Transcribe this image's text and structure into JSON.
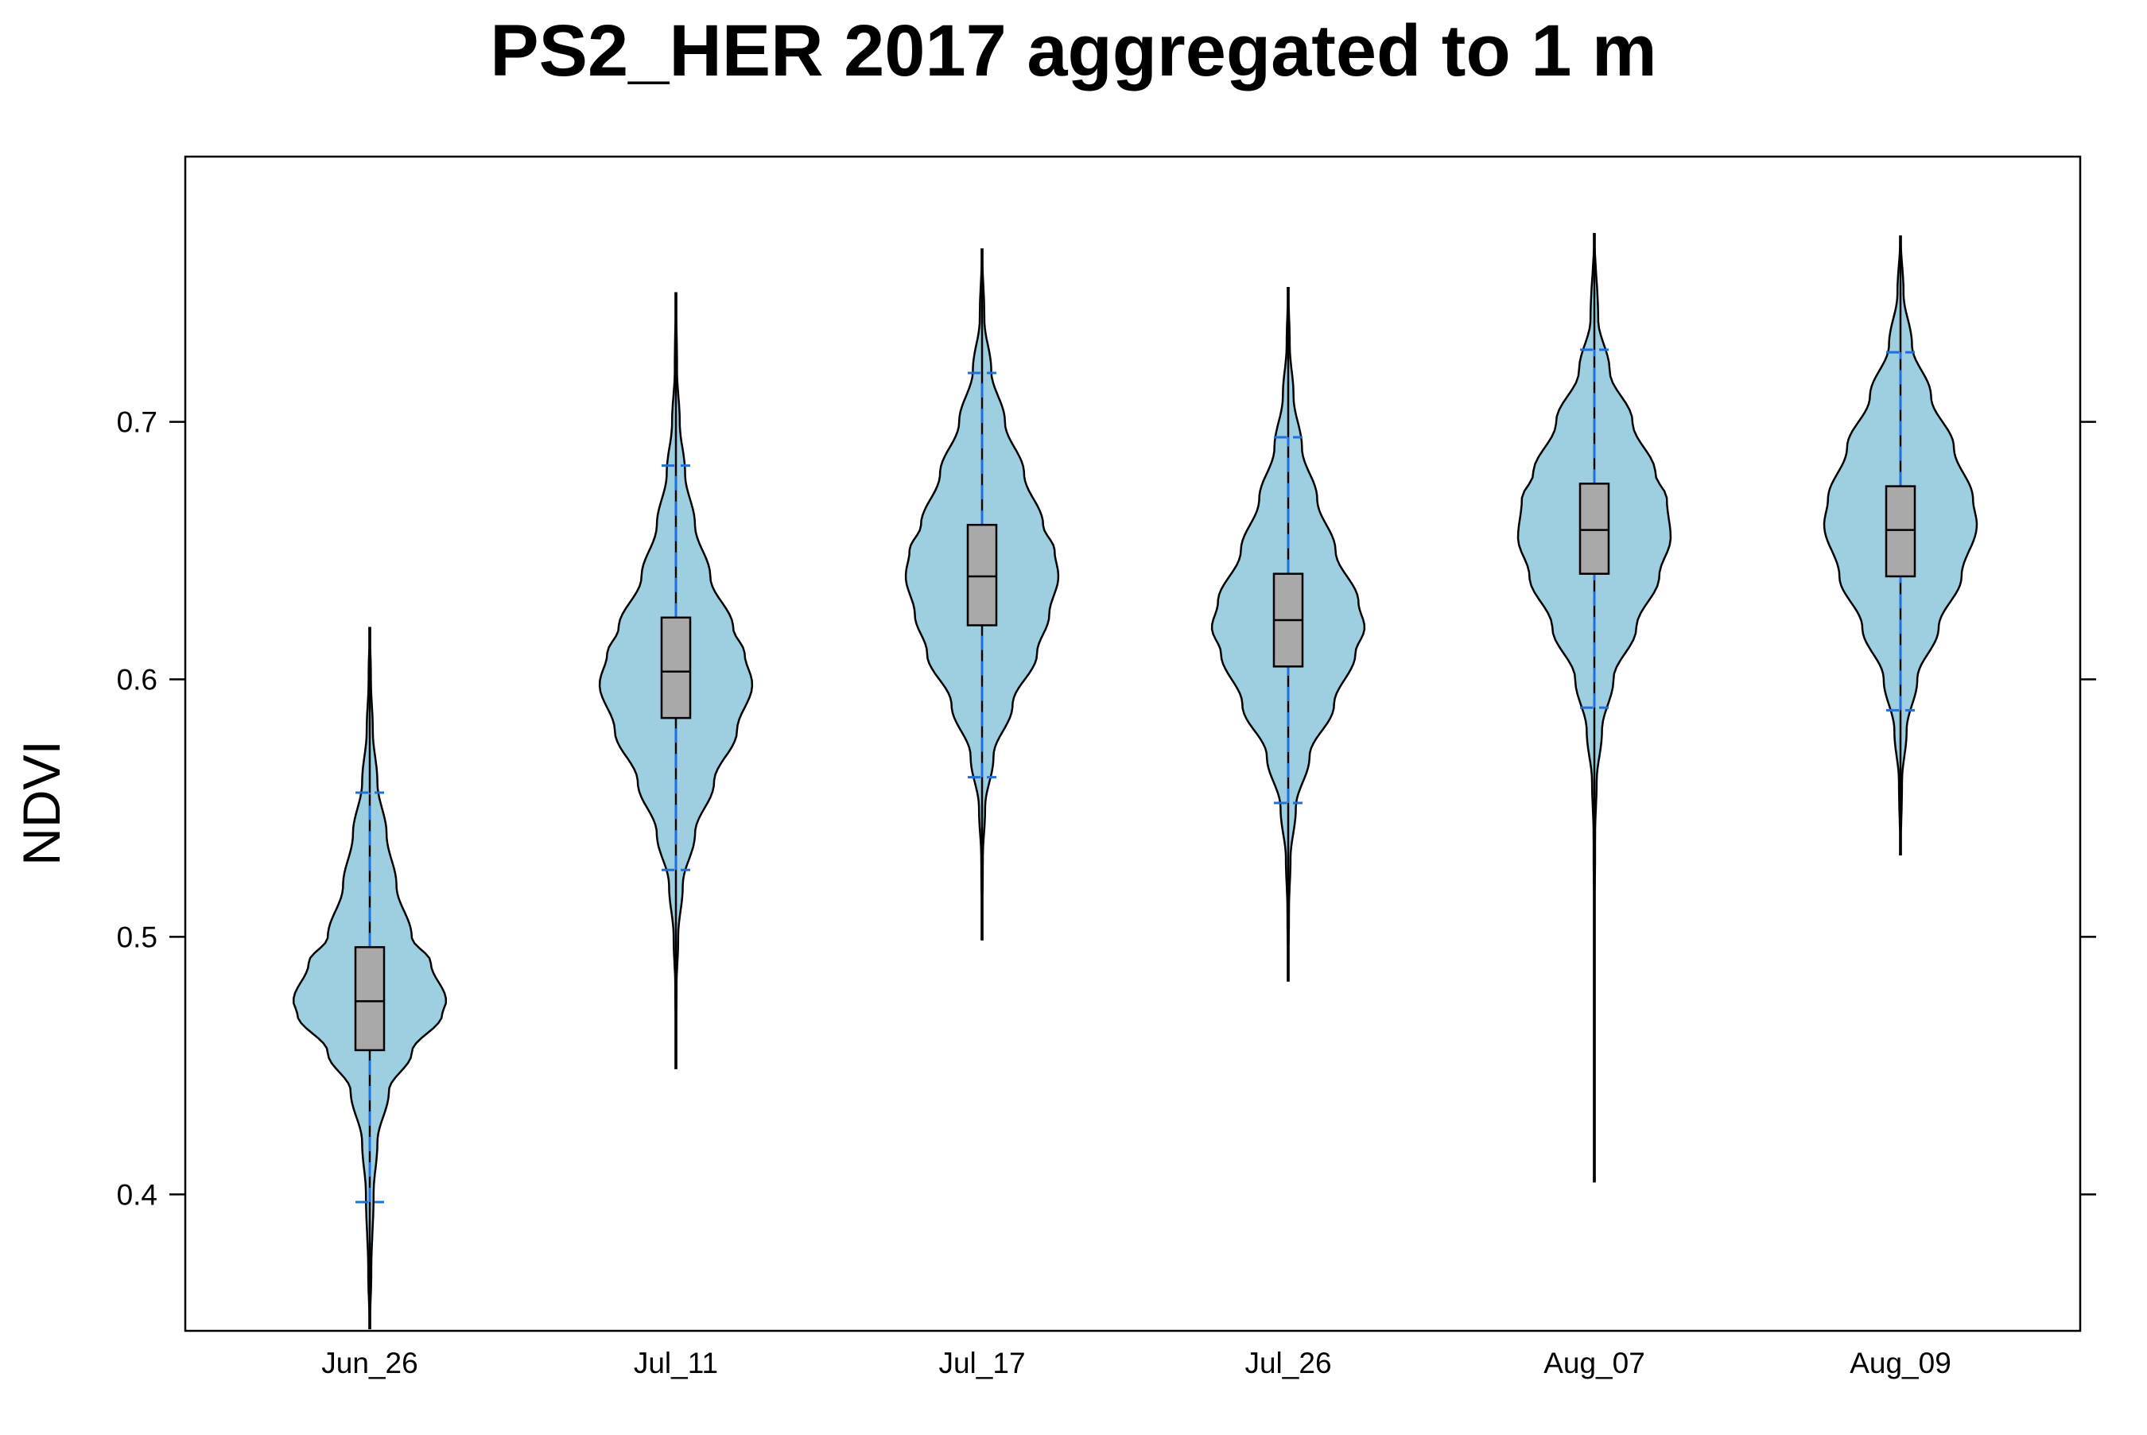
{
  "chart_data": {
    "type": "violin",
    "title": "PS2_HER 2017 aggregated to 1 m",
    "xlabel": "",
    "ylabel": "NDVI",
    "ylim": [
      0.347,
      0.803
    ],
    "yticks": [
      0.4,
      0.5,
      0.6,
      0.7
    ],
    "ytick_labels": [
      "0.4",
      "0.5",
      "0.6",
      "0.7"
    ],
    "categories": [
      "Jun_26",
      "Jul_11",
      "Jul_17",
      "Jul_26",
      "Aug_07",
      "Aug_09"
    ],
    "grid": false,
    "legend": "none",
    "colors": {
      "violin_fill": "#9ecfe0",
      "box_fill": "#a9a9a9",
      "whisker_line": "#1f6fe0",
      "outline": "#000000"
    },
    "series": [
      {
        "category": "Jun_26",
        "min": 0.348,
        "whisker_low": 0.397,
        "q1": 0.456,
        "median": 0.475,
        "q3": 0.496,
        "whisker_high": 0.556,
        "max": 0.62,
        "density": [
          [
            0.348,
            0.002
          ],
          [
            0.37,
            0.02
          ],
          [
            0.4,
            0.05
          ],
          [
            0.42,
            0.1
          ],
          [
            0.44,
            0.25
          ],
          [
            0.455,
            0.55
          ],
          [
            0.47,
            0.95
          ],
          [
            0.475,
            1.0
          ],
          [
            0.49,
            0.8
          ],
          [
            0.5,
            0.55
          ],
          [
            0.52,
            0.35
          ],
          [
            0.54,
            0.22
          ],
          [
            0.56,
            0.1
          ],
          [
            0.58,
            0.04
          ],
          [
            0.6,
            0.015
          ],
          [
            0.62,
            0.002
          ]
        ]
      },
      {
        "category": "Jul_11",
        "min": 0.449,
        "whisker_low": 0.526,
        "q1": 0.585,
        "median": 0.603,
        "q3": 0.624,
        "whisker_high": 0.683,
        "max": 0.75,
        "density": [
          [
            0.449,
            0.002
          ],
          [
            0.48,
            0.008
          ],
          [
            0.5,
            0.03
          ],
          [
            0.52,
            0.09
          ],
          [
            0.54,
            0.25
          ],
          [
            0.56,
            0.5
          ],
          [
            0.58,
            0.8
          ],
          [
            0.598,
            1.0
          ],
          [
            0.61,
            0.9
          ],
          [
            0.62,
            0.75
          ],
          [
            0.64,
            0.45
          ],
          [
            0.66,
            0.25
          ],
          [
            0.68,
            0.12
          ],
          [
            0.7,
            0.05
          ],
          [
            0.72,
            0.015
          ],
          [
            0.75,
            0.002
          ]
        ]
      },
      {
        "category": "Jul_17",
        "min": 0.499,
        "whisker_low": 0.562,
        "q1": 0.621,
        "median": 0.64,
        "q3": 0.66,
        "whisker_high": 0.719,
        "max": 0.767,
        "density": [
          [
            0.499,
            0.002
          ],
          [
            0.53,
            0.01
          ],
          [
            0.55,
            0.04
          ],
          [
            0.57,
            0.15
          ],
          [
            0.59,
            0.4
          ],
          [
            0.61,
            0.72
          ],
          [
            0.625,
            0.88
          ],
          [
            0.64,
            1.0
          ],
          [
            0.65,
            0.95
          ],
          [
            0.66,
            0.8
          ],
          [
            0.68,
            0.55
          ],
          [
            0.7,
            0.3
          ],
          [
            0.72,
            0.12
          ],
          [
            0.74,
            0.03
          ],
          [
            0.767,
            0.002
          ]
        ]
      },
      {
        "category": "Jul_26",
        "min": 0.483,
        "whisker_low": 0.552,
        "q1": 0.605,
        "median": 0.623,
        "q3": 0.641,
        "whisker_high": 0.694,
        "max": 0.752,
        "density": [
          [
            0.483,
            0.002
          ],
          [
            0.51,
            0.01
          ],
          [
            0.53,
            0.03
          ],
          [
            0.55,
            0.1
          ],
          [
            0.57,
            0.28
          ],
          [
            0.59,
            0.6
          ],
          [
            0.61,
            0.88
          ],
          [
            0.62,
            1.0
          ],
          [
            0.63,
            0.92
          ],
          [
            0.65,
            0.62
          ],
          [
            0.67,
            0.38
          ],
          [
            0.69,
            0.18
          ],
          [
            0.71,
            0.07
          ],
          [
            0.73,
            0.02
          ],
          [
            0.752,
            0.002
          ]
        ]
      },
      {
        "category": "Aug_07",
        "min": 0.405,
        "whisker_low": 0.589,
        "q1": 0.641,
        "median": 0.658,
        "q3": 0.676,
        "whisker_high": 0.728,
        "max": 0.773,
        "density": [
          [
            0.405,
            0.002
          ],
          [
            0.45,
            0.002
          ],
          [
            0.5,
            0.004
          ],
          [
            0.54,
            0.01
          ],
          [
            0.56,
            0.03
          ],
          [
            0.58,
            0.1
          ],
          [
            0.6,
            0.25
          ],
          [
            0.62,
            0.55
          ],
          [
            0.64,
            0.85
          ],
          [
            0.655,
            1.0
          ],
          [
            0.67,
            0.95
          ],
          [
            0.68,
            0.8
          ],
          [
            0.7,
            0.5
          ],
          [
            0.72,
            0.2
          ],
          [
            0.74,
            0.05
          ],
          [
            0.773,
            0.002
          ]
        ]
      },
      {
        "category": "Aug_09",
        "min": 0.532,
        "whisker_low": 0.588,
        "q1": 0.64,
        "median": 0.658,
        "q3": 0.675,
        "whisker_high": 0.727,
        "max": 0.772,
        "density": [
          [
            0.532,
            0.002
          ],
          [
            0.56,
            0.02
          ],
          [
            0.58,
            0.08
          ],
          [
            0.6,
            0.22
          ],
          [
            0.62,
            0.5
          ],
          [
            0.64,
            0.8
          ],
          [
            0.66,
            1.0
          ],
          [
            0.67,
            0.95
          ],
          [
            0.69,
            0.7
          ],
          [
            0.71,
            0.4
          ],
          [
            0.73,
            0.15
          ],
          [
            0.75,
            0.04
          ],
          [
            0.772,
            0.002
          ]
        ]
      }
    ]
  }
}
